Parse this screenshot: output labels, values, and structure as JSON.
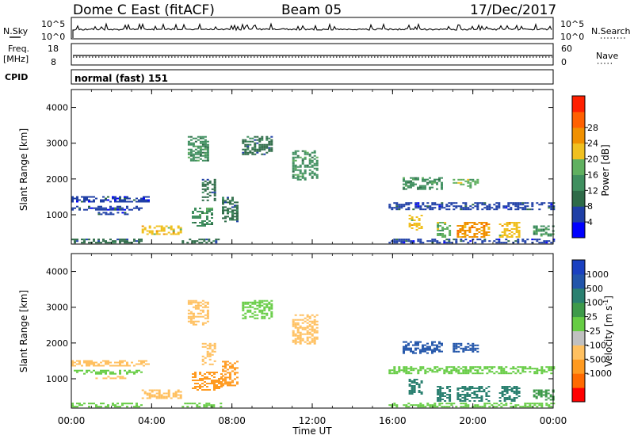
{
  "header": {
    "title": "Dome C East (fitACF)",
    "beam": "Beam 05",
    "date": "17/Dec/2017"
  },
  "params": {
    "nsky_label": "N.Sky",
    "nsearch_label": "N.Search",
    "freq_label": "Freq.",
    "freq_unit": "[MHz]",
    "nave_label": "Nave",
    "cpid_label": "CPID",
    "cpid_value": "normal (fast) 151",
    "nsky_ticks": [
      "10^5",
      "10^0"
    ],
    "nsearch_ticks": [
      "10^5",
      "10^0"
    ],
    "freq_ticks": [
      "18",
      "8"
    ],
    "nave_ticks": [
      "60",
      "0"
    ]
  },
  "colors": {
    "power": [
      "#0000ff",
      "#1f3fa6",
      "#2e6b48",
      "#3f8f5f",
      "#60b060",
      "#f0c020",
      "#f09000",
      "#ff6000",
      "#ff2000"
    ],
    "velocity": [
      "#ff0000",
      "#ff6a00",
      "#ff9a20",
      "#ffc060",
      "#c0c0c0",
      "#66cc44",
      "#3e9a4a",
      "#2a8070",
      "#2255aa",
      "#1a40c0"
    ]
  },
  "chart_data": [
    {
      "type": "heatmap",
      "name": "power",
      "xlabel": "Time UT",
      "ylabel": "Slant Range [km]",
      "xlim": [
        0,
        24
      ],
      "ylim": [
        180,
        4500
      ],
      "x_ticks": [
        "00:00",
        "04:00",
        "08:00",
        "12:00",
        "16:00",
        "20:00",
        "00:00"
      ],
      "y_ticks": [
        "1000",
        "2000",
        "3000",
        "4000"
      ],
      "colorbar_label": "Power [dB]",
      "colorbar_ticks": [
        "4",
        "8",
        "12",
        "16",
        "20",
        "24",
        "28"
      ],
      "regions": [
        {
          "t0": 0.0,
          "t1": 3.8,
          "r0": 1380,
          "r1": 1520,
          "v": 7
        },
        {
          "t0": 0.0,
          "t1": 3.5,
          "r0": 1150,
          "r1": 1250,
          "v": 6
        },
        {
          "t0": 1.2,
          "t1": 2.8,
          "r0": 1000,
          "r1": 1080,
          "v": 5
        },
        {
          "t0": 3.5,
          "t1": 5.5,
          "r0": 450,
          "r1": 700,
          "v": 20
        },
        {
          "t0": 0.0,
          "t1": 3.5,
          "r0": 200,
          "r1": 330,
          "v": 8
        },
        {
          "t0": 5.5,
          "t1": 7.5,
          "r0": 200,
          "r1": 330,
          "v": 8
        },
        {
          "t0": 6.0,
          "t1": 7.0,
          "r0": 700,
          "r1": 1200,
          "v": 14
        },
        {
          "t0": 7.5,
          "t1": 8.3,
          "r0": 800,
          "r1": 1500,
          "v": 10
        },
        {
          "t0": 5.8,
          "t1": 6.8,
          "r0": 2500,
          "r1": 3200,
          "v": 12
        },
        {
          "t0": 6.5,
          "t1": 7.2,
          "r0": 1400,
          "r1": 2000,
          "v": 10
        },
        {
          "t0": 8.5,
          "t1": 10.0,
          "r0": 2700,
          "r1": 3200,
          "v": 8
        },
        {
          "t0": 11.0,
          "t1": 12.3,
          "r0": 2000,
          "r1": 2800,
          "v": 12
        },
        {
          "t0": 16.8,
          "t1": 17.4,
          "r0": 600,
          "r1": 1000,
          "v": 20
        },
        {
          "t0": 18.2,
          "t1": 18.8,
          "r0": 400,
          "r1": 800,
          "v": 18
        },
        {
          "t0": 19.2,
          "t1": 20.8,
          "r0": 400,
          "r1": 800,
          "v": 24
        },
        {
          "t0": 21.3,
          "t1": 22.3,
          "r0": 400,
          "r1": 800,
          "v": 22
        },
        {
          "t0": 23.0,
          "t1": 24.0,
          "r0": 400,
          "r1": 700,
          "v": 12
        },
        {
          "t0": 16.5,
          "t1": 18.5,
          "r0": 1700,
          "r1": 2050,
          "v": 12
        },
        {
          "t0": 19.0,
          "t1": 20.3,
          "r0": 1750,
          "r1": 2000,
          "v": 16
        },
        {
          "t0": 15.8,
          "t1": 24.0,
          "r0": 1150,
          "r1": 1350,
          "v": 4
        },
        {
          "t0": 15.8,
          "t1": 24.0,
          "r0": 200,
          "r1": 330,
          "v": 6
        }
      ]
    },
    {
      "type": "heatmap",
      "name": "velocity",
      "xlabel": "Time UT",
      "ylabel": "Slant Range [km]",
      "xlim": [
        0,
        24
      ],
      "ylim": [
        180,
        4500
      ],
      "x_ticks": [
        "00:00",
        "04:00",
        "08:00",
        "12:00",
        "16:00",
        "20:00",
        "00:00"
      ],
      "y_ticks": [
        "1000",
        "2000",
        "3000",
        "4000"
      ],
      "colorbar_label": "Velocity [m s^-1]",
      "colorbar_ticks": [
        "1000",
        "500",
        "100",
        "25",
        "-25",
        "-100",
        "-500",
        "-1000"
      ],
      "regions": [
        {
          "t0": 0.0,
          "t1": 3.8,
          "r0": 1380,
          "r1": 1520,
          "v": -300
        },
        {
          "t0": 0.0,
          "t1": 3.5,
          "r0": 1150,
          "r1": 1250,
          "v": 10
        },
        {
          "t0": 1.2,
          "t1": 2.8,
          "r0": 1000,
          "r1": 1080,
          "v": -200
        },
        {
          "t0": 3.5,
          "t1": 5.5,
          "r0": 450,
          "r1": 700,
          "v": -200
        },
        {
          "t0": 0.0,
          "t1": 3.5,
          "r0": 200,
          "r1": 330,
          "v": 0
        },
        {
          "t0": 5.5,
          "t1": 7.5,
          "r0": 200,
          "r1": 330,
          "v": 0
        },
        {
          "t0": 6.0,
          "t1": 7.5,
          "r0": 700,
          "r1": 1200,
          "v": -600
        },
        {
          "t0": 7.5,
          "t1": 8.3,
          "r0": 800,
          "r1": 1500,
          "v": -500
        },
        {
          "t0": 5.8,
          "t1": 6.8,
          "r0": 2500,
          "r1": 3200,
          "v": -300
        },
        {
          "t0": 6.5,
          "t1": 7.2,
          "r0": 1400,
          "r1": 2000,
          "v": -200
        },
        {
          "t0": 8.5,
          "t1": 10.0,
          "r0": 2700,
          "r1": 3200,
          "v": 0
        },
        {
          "t0": 11.0,
          "t1": 12.3,
          "r0": 2000,
          "r1": 2800,
          "v": -200
        },
        {
          "t0": 16.8,
          "t1": 17.4,
          "r0": 600,
          "r1": 1000,
          "v": 150
        },
        {
          "t0": 18.2,
          "t1": 18.8,
          "r0": 400,
          "r1": 800,
          "v": 150
        },
        {
          "t0": 19.2,
          "t1": 20.8,
          "r0": 400,
          "r1": 800,
          "v": 150
        },
        {
          "t0": 21.3,
          "t1": 22.3,
          "r0": 400,
          "r1": 800,
          "v": 150
        },
        {
          "t0": 23.0,
          "t1": 24.0,
          "r0": 400,
          "r1": 700,
          "v": 60
        },
        {
          "t0": 16.5,
          "t1": 18.5,
          "r0": 1700,
          "r1": 2050,
          "v": 700
        },
        {
          "t0": 19.0,
          "t1": 20.3,
          "r0": 1750,
          "r1": 2000,
          "v": 800
        },
        {
          "t0": 15.8,
          "t1": 24.0,
          "r0": 1150,
          "r1": 1350,
          "v": 0
        },
        {
          "t0": 15.8,
          "t1": 24.0,
          "r0": 200,
          "r1": 330,
          "v": 0
        }
      ]
    }
  ]
}
